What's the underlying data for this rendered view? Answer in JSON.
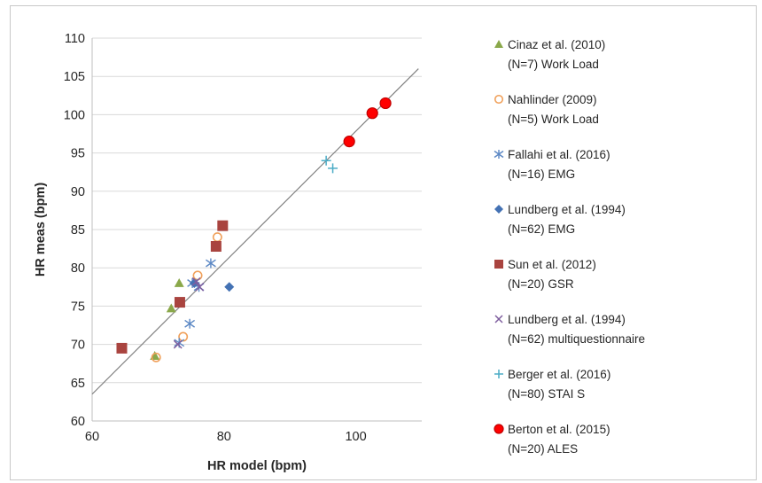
{
  "chart_data": {
    "type": "scatter",
    "xlabel": "HR model (bpm)",
    "ylabel": "HR meas (bpm)",
    "xlim": [
      60,
      110
    ],
    "ylim": [
      60,
      110
    ],
    "x_ticks": [
      60,
      80,
      100
    ],
    "y_ticks": [
      60,
      65,
      70,
      75,
      80,
      85,
      90,
      95,
      100,
      105,
      110
    ],
    "grid": "horizontal",
    "legend_position": "right",
    "reference_line": {
      "from": [
        60,
        63.5
      ],
      "to": [
        109.5,
        106
      ],
      "color": "#808080"
    },
    "series": [
      {
        "name": "Cinaz et al. (2010)",
        "detail": "(N=7) Work Load",
        "marker": "triangle",
        "color": "#8AA84A",
        "points": [
          [
            69.5,
            68.5
          ],
          [
            72,
            74.7
          ],
          [
            73.2,
            78
          ]
        ]
      },
      {
        "name": "Nahlinder (2009)",
        "detail": "(N=5) Work Load",
        "marker": "circle-open",
        "color": "#F0A05A",
        "points": [
          [
            69.7,
            68.3
          ],
          [
            73.8,
            71
          ],
          [
            76,
            79
          ],
          [
            79,
            84
          ]
        ]
      },
      {
        "name": "Fallahi et al. (2016)",
        "detail": "(N=16) EMG",
        "marker": "star",
        "color": "#5B87C4",
        "points": [
          [
            73.2,
            70.2
          ],
          [
            74.8,
            72.7
          ],
          [
            75.2,
            78
          ],
          [
            76.2,
            77.5
          ],
          [
            78,
            80.6
          ]
        ]
      },
      {
        "name": "Lundberg et al. (1994)",
        "detail": "(N=62) EMG",
        "marker": "diamond",
        "color": "#4472B4",
        "points": [
          [
            75.5,
            78
          ],
          [
            80.8,
            77.5
          ]
        ]
      },
      {
        "name": "Sun et al. (2012)",
        "detail": "(N=20) GSR",
        "marker": "square",
        "color": "#A9443F",
        "points": [
          [
            64.5,
            69.5
          ],
          [
            73.3,
            75.5
          ],
          [
            78.8,
            82.8
          ],
          [
            79.8,
            85.5
          ]
        ]
      },
      {
        "name": "Lundberg et al. (1994)",
        "detail": "(N=62) multiquestionnaire",
        "marker": "x",
        "color": "#7E5E9E",
        "points": [
          [
            73,
            70
          ],
          [
            75.8,
            78.2
          ],
          [
            76.3,
            77.5
          ]
        ]
      },
      {
        "name": "Berger et al. (2016)",
        "detail": "(N=80) STAI S",
        "marker": "plus",
        "color": "#4BACC6",
        "points": [
          [
            95.5,
            94
          ],
          [
            96.5,
            93
          ]
        ]
      },
      {
        "name": "Berton et al. (2015)",
        "detail": "(N=20) ALES",
        "marker": "circle-red",
        "color": "#FF0000",
        "points": [
          [
            99,
            96.5
          ],
          [
            102.5,
            100.2
          ],
          [
            104.5,
            101.5
          ]
        ]
      }
    ]
  }
}
